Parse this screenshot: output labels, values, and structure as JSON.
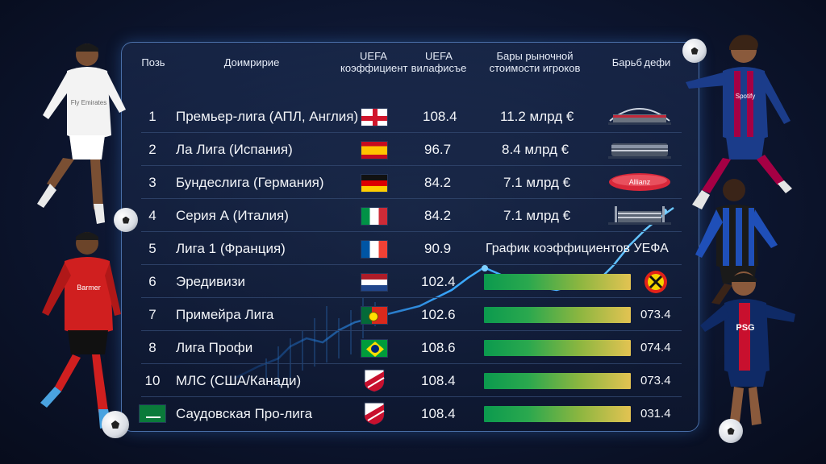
{
  "headers": {
    "pos": "Позь",
    "league": "Доимририе",
    "uefa_coef": "UEFA коэффициент",
    "uefa_vil": "UEFA вилафисъе",
    "market": "Бары рыночной стоимости игроков",
    "bars": "Барьб дефи"
  },
  "rows": [
    {
      "pos": "1",
      "league": "Премьер-лига (АПЛ, Англия)",
      "flag": "england",
      "coef": "108.4",
      "market": "11.2 млрд €"
    },
    {
      "pos": "2",
      "league": "Ла Лига (Испания)",
      "flag": "spain",
      "coef": "96.7",
      "market": "8.4 млрд €"
    },
    {
      "pos": "3",
      "league": "Бундеслига (Германия)",
      "flag": "germany",
      "coef": "84.2",
      "market": "7.1 млрд €"
    },
    {
      "pos": "4",
      "league": "Серия А (Италия)",
      "flag": "italy",
      "coef": "84.2",
      "market": "7.1 млрд €"
    },
    {
      "pos": "5",
      "league": "Лига 1 (Франция)",
      "flag": "france",
      "coef": "90.9",
      "market": "График коэффициентов УЕФА"
    },
    {
      "pos": "6",
      "league": "Эредивизи",
      "flag": "netherlands",
      "coef": "102.4",
      "bar_value": ""
    },
    {
      "pos": "7",
      "league": "Примейра Лига",
      "flag": "portugal",
      "coef": "102.6",
      "bar_value": "073.4"
    },
    {
      "pos": "8",
      "league": "Лига Профи",
      "flag": "brazil",
      "coef": "108.6",
      "bar_value": "074.4"
    },
    {
      "pos": "10",
      "league": "МЛС (США/Канади)",
      "flag": "mls-shield",
      "coef": "108.4",
      "bar_value": "073.4"
    },
    {
      "pos": "",
      "league": "Саудовская Про-лига",
      "flag": "mls-shield",
      "coef": "108.4",
      "bar_value": "031.4"
    }
  ],
  "stadium_label": "Allianz",
  "kit_texts": {
    "real": "Fly Emirates",
    "leverkusen": "Barmer",
    "barca": "Spotify",
    "psg": "PSG"
  },
  "colors": {
    "background": "#0d1630",
    "panel_border": "#4a6fa8",
    "bar_start": "#0b9a4e",
    "bar_end": "#e3c352",
    "trend_line": "#39a8ff"
  }
}
